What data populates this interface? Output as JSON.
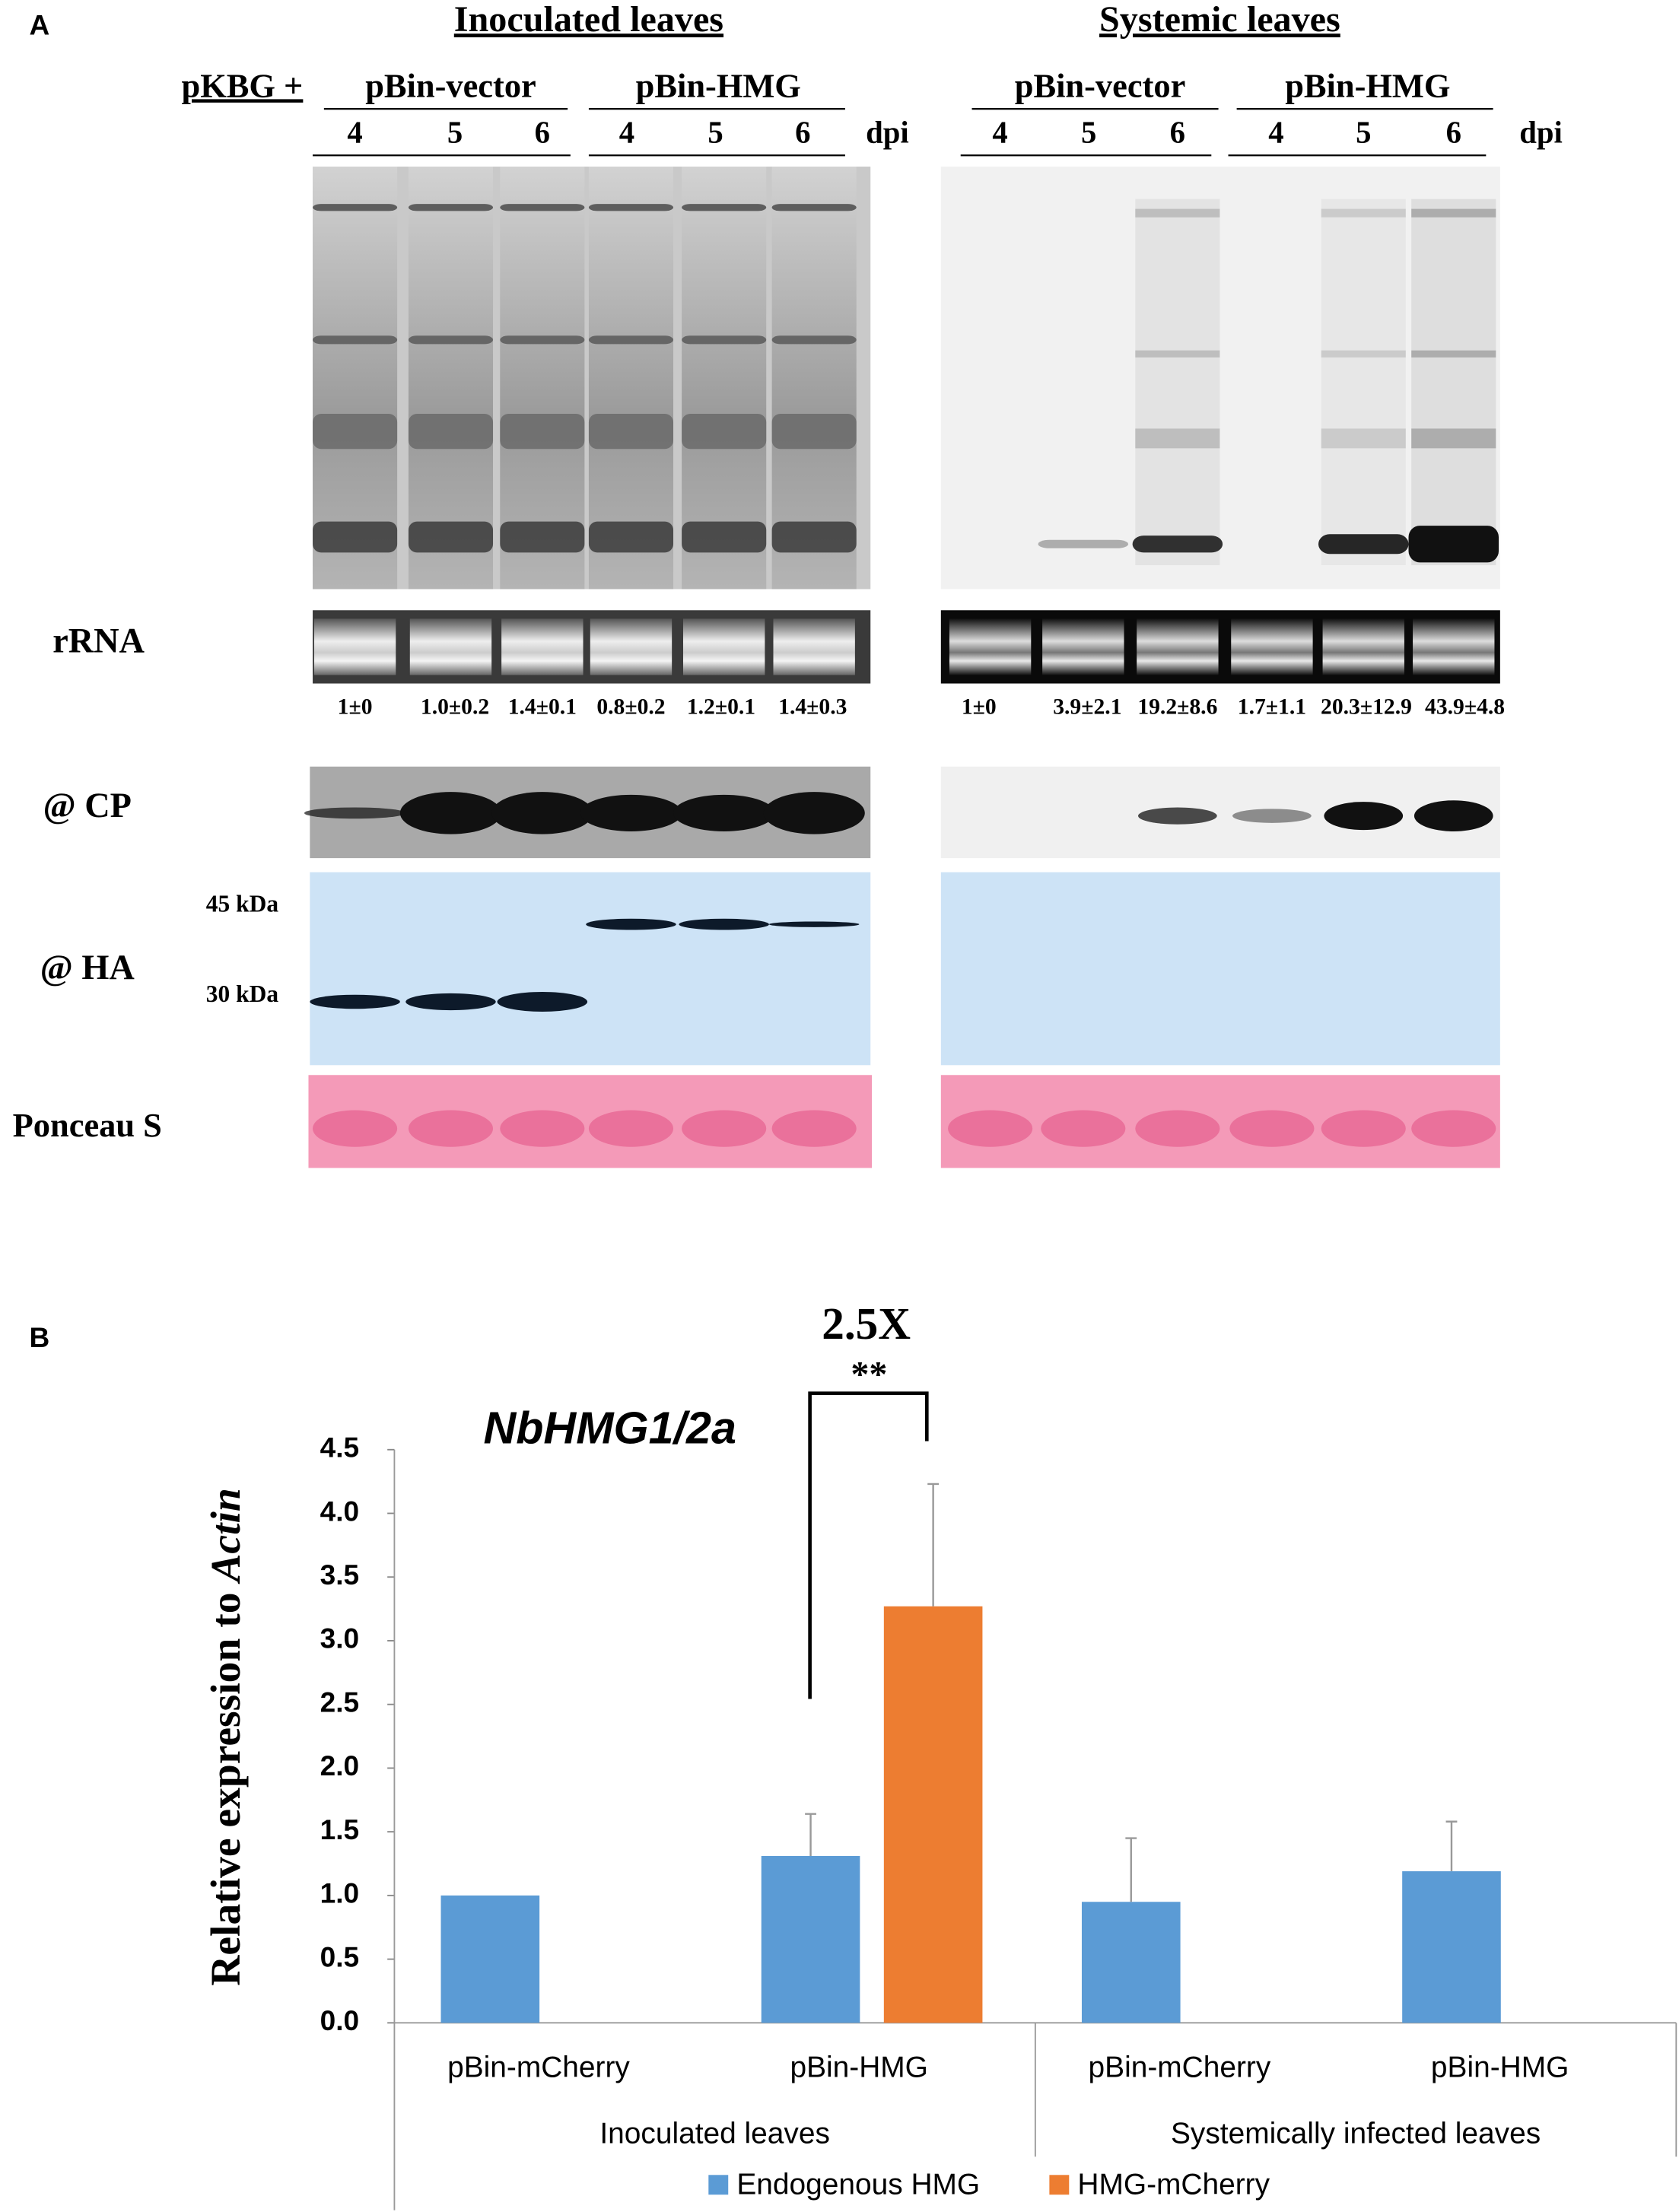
{
  "panel_a": {
    "label": "A",
    "headers": [
      "Inoculated leaves",
      "Systemic leaves"
    ],
    "prefix": "pKBG +",
    "constructs": [
      "pBin-vector",
      "pBin-HMG",
      "pBin-vector",
      "pBin-HMG"
    ],
    "dpi_values": [
      4,
      5,
      6,
      4,
      5,
      6,
      4,
      5,
      6,
      4,
      5,
      6
    ],
    "dpi_units": [
      "dpi",
      "dpi"
    ],
    "rows": {
      "rrna": "rRNA",
      "cp": "@ CP",
      "ha": "@ HA",
      "ponceau": "Ponceau S"
    },
    "markers": [
      "45 kDa",
      "30 kDa"
    ],
    "quantification": [
      "1±0",
      "1.0±0.2",
      "1.4±0.1",
      "0.8±0.2",
      "1.2±0.1",
      "1.4±0.3",
      "1±0",
      "3.9±2.1",
      "19.2±8.6",
      "1.7±1.1",
      "20.3±12.9",
      "43.9±4.8"
    ]
  },
  "chart_data": {
    "type": "bar",
    "label": "B",
    "title": "NbHMG1/2a",
    "annotation": "2.5X",
    "significance": "**",
    "ylabel": [
      "Relative expression to ",
      "Actin"
    ],
    "categories": [
      "pBin-mCherry",
      "pBin-HMG",
      "pBin-mCherry",
      "pBin-HMG"
    ],
    "groups": [
      "Inoculated leaves",
      "Systemically infected leaves"
    ],
    "series": [
      {
        "name": "Endogenous HMG",
        "color": "#5b9bd5",
        "values": [
          1.0,
          1.31,
          0.95,
          1.19
        ],
        "errors": [
          null,
          0.33,
          0.5,
          0.39
        ]
      },
      {
        "name": "HMG-mCherry",
        "color": "#ed7d31",
        "values": [
          null,
          3.27,
          null,
          null
        ],
        "errors": [
          null,
          0.96,
          null,
          null
        ]
      }
    ],
    "ylim": [
      0,
      4.5
    ],
    "yticks": [
      {
        "value": 0,
        "label": "0.0"
      },
      0.5,
      {
        "value": 1,
        "label": "1.0"
      },
      1.5,
      {
        "value": 2,
        "label": "2.0"
      },
      2.5,
      {
        "value": 3,
        "label": "3.0"
      },
      3.5,
      {
        "value": 4,
        "label": "4.0"
      },
      4.5
    ],
    "legend": "bottom"
  }
}
